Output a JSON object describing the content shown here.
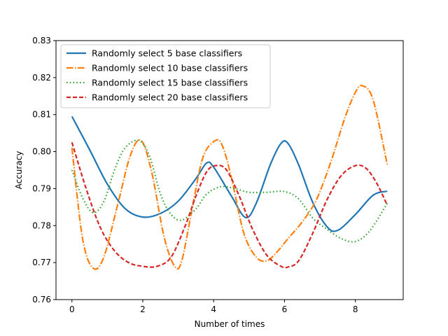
{
  "chart_data": {
    "type": "line",
    "title": "",
    "xlabel": "Number of times",
    "ylabel": "Accuracy",
    "xlim": [
      -0.45,
      9.35
    ],
    "ylim": [
      0.76,
      0.83
    ],
    "xticks": [
      0,
      2,
      4,
      6,
      8
    ],
    "xtick_labels": [
      "0",
      "2",
      "4",
      "6",
      "8"
    ],
    "yticks": [
      0.76,
      0.77,
      0.78,
      0.79,
      0.8,
      0.81,
      0.82,
      0.83
    ],
    "ytick_labels": [
      "0.76",
      "0.77",
      "0.78",
      "0.79",
      "0.80",
      "0.81",
      "0.82",
      "0.83"
    ],
    "grid": false,
    "legend_position": "top-left",
    "series": [
      {
        "name": "Randomly select 5 base classifiers",
        "color": "#1f77b4",
        "linestyle": "solid",
        "x": [
          0,
          0.5,
          1,
          1.5,
          2,
          2.5,
          3,
          3.5,
          3.8,
          4,
          4.5,
          4.9,
          5.2,
          5.6,
          5.9,
          6.1,
          6.4,
          6.8,
          7.2,
          7.5,
          8.0,
          8.5,
          8.9
        ],
        "y": [
          0.8095,
          0.8005,
          0.7912,
          0.7846,
          0.7823,
          0.7833,
          0.7866,
          0.7927,
          0.7969,
          0.7958,
          0.788,
          0.7822,
          0.786,
          0.7965,
          0.8022,
          0.8022,
          0.7964,
          0.7862,
          0.7797,
          0.7787,
          0.783,
          0.7882,
          0.7893
        ]
      },
      {
        "name": "Randomly select 10 base classifiers",
        "color": "#ff7f0e",
        "linestyle": "dashdot",
        "x": [
          0,
          0.3,
          0.6,
          0.9,
          1.3,
          1.65,
          1.95,
          2.25,
          2.6,
          2.9,
          3.1,
          3.4,
          3.7,
          4.05,
          4.25,
          4.5,
          4.85,
          5.2,
          5.5,
          5.8,
          6.1,
          6.5,
          6.9,
          7.3,
          7.7,
          8.0,
          8.2,
          8.5,
          8.9
        ],
        "y": [
          0.801,
          0.7765,
          0.7685,
          0.7715,
          0.786,
          0.799,
          0.803,
          0.7945,
          0.777,
          0.769,
          0.7705,
          0.785,
          0.7985,
          0.803,
          0.8015,
          0.793,
          0.778,
          0.7715,
          0.7705,
          0.773,
          0.7765,
          0.781,
          0.787,
          0.797,
          0.809,
          0.816,
          0.8178,
          0.814,
          0.7965
        ]
      },
      {
        "name": "Randomly select 15 base classifiers",
        "color": "#2ca02c",
        "linestyle": "dotted",
        "x": [
          0,
          0.3,
          0.6,
          0.9,
          1.2,
          1.5,
          1.9,
          2.2,
          2.5,
          2.8,
          3.1,
          3.5,
          3.8,
          4.2,
          4.6,
          5.0,
          5.5,
          6.0,
          6.4,
          6.8,
          7.2,
          7.6,
          8.0,
          8.4,
          8.9
        ],
        "y": [
          0.795,
          0.7875,
          0.7835,
          0.7865,
          0.795,
          0.801,
          0.803,
          0.7985,
          0.7885,
          0.783,
          0.7815,
          0.7845,
          0.7885,
          0.7905,
          0.79,
          0.789,
          0.789,
          0.7892,
          0.7872,
          0.782,
          0.779,
          0.7765,
          0.7757,
          0.7785,
          0.786
        ]
      },
      {
        "name": "Randomly select 20 base classifiers",
        "color": "#d62728",
        "linestyle": "dashed",
        "x": [
          0,
          0.4,
          0.8,
          1.2,
          1.6,
          2.0,
          2.4,
          2.8,
          3.2,
          3.5,
          3.8,
          4.05,
          4.35,
          4.7,
          5.1,
          5.5,
          5.9,
          6.1,
          6.4,
          6.8,
          7.2,
          7.6,
          8.0,
          8.3,
          8.6,
          8.9
        ],
        "y": [
          0.8025,
          0.79,
          0.7795,
          0.7732,
          0.77,
          0.769,
          0.769,
          0.7715,
          0.78,
          0.788,
          0.7945,
          0.7962,
          0.7952,
          0.7885,
          0.779,
          0.772,
          0.769,
          0.7688,
          0.7705,
          0.778,
          0.787,
          0.7935,
          0.7962,
          0.7955,
          0.7915,
          0.7855
        ]
      }
    ]
  }
}
